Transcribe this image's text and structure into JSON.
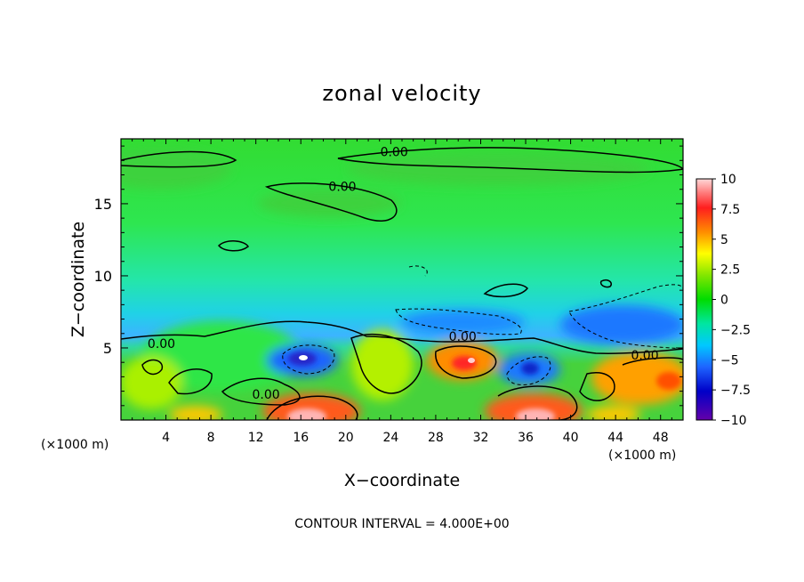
{
  "chart_data": {
    "type": "heatmap",
    "title": "zonal velocity",
    "xlabel": "X−coordinate",
    "ylabel": "Z−coordinate",
    "x_unit_left": "(×1000 m)",
    "x_unit_right": "(×1000 m)",
    "footer": "CONTOUR INTERVAL = 4.000E+00",
    "xlim": [
      0,
      50
    ],
    "ylim": [
      0,
      19.5
    ],
    "x_ticks": [
      4,
      8,
      12,
      16,
      20,
      24,
      28,
      32,
      36,
      40,
      44,
      48
    ],
    "x_tick_labels": [
      "4",
      "8",
      "12",
      "16",
      "20",
      "24",
      "28",
      "32",
      "36",
      "40",
      "44",
      "48"
    ],
    "y_ticks": [
      5,
      10,
      15
    ],
    "y_tick_labels": [
      "5",
      "10",
      "15"
    ],
    "colorbar": {
      "range": [
        -10,
        10
      ],
      "ticks": [
        10,
        7.5,
        5,
        2.5,
        0,
        -2.5,
        -5,
        -7.5,
        -10
      ],
      "tick_labels": [
        "10",
        "7.5",
        "5",
        "2.5",
        "0",
        "−2.5",
        "−5",
        "−7.5",
        "−10"
      ]
    },
    "contour_labels": [
      {
        "text": "0.00",
        "x": 24.3,
        "z": 18.6
      },
      {
        "text": "0.00",
        "x": 19.7,
        "z": 16.2
      },
      {
        "text": "0.00",
        "x": 3.6,
        "z": 5.3
      },
      {
        "text": "0.00",
        "x": 30.4,
        "z": 5.8
      },
      {
        "text": "0.00",
        "x": 46.6,
        "z": 4.5
      },
      {
        "text": "0.00",
        "x": 12.9,
        "z": 1.8
      }
    ],
    "features": [
      {
        "x": 16.0,
        "z": 4.4,
        "value": -10
      },
      {
        "x": 31.0,
        "z": 4.3,
        "value": 9
      },
      {
        "x": 35.8,
        "z": 3.8,
        "value": -6
      },
      {
        "x": 36.8,
        "z": 0.6,
        "value": 11
      },
      {
        "x": 16.5,
        "z": 0.6,
        "value": 11
      },
      {
        "x": 48.6,
        "z": 2.8,
        "value": 6
      },
      {
        "x": 7.5,
        "z": 0.4,
        "value": 5
      },
      {
        "x": 45.5,
        "z": 6.3,
        "value": -5
      },
      {
        "x": 33.0,
        "z": 7.3,
        "value": -4
      },
      {
        "x": 20.0,
        "z": 9.0,
        "value": -2.6
      }
    ]
  }
}
